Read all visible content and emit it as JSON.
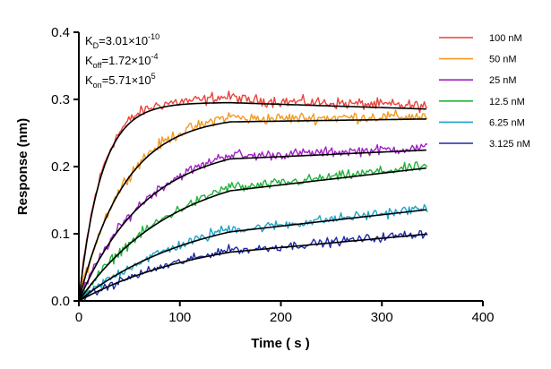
{
  "chart_data": {
    "type": "line",
    "xlabel": "Time ( s )",
    "ylabel": "Response (nm)",
    "xlim": [
      0,
      400
    ],
    "ylim": [
      0,
      0.4
    ],
    "xticks": [
      0,
      100,
      200,
      300,
      400
    ],
    "yticks": [
      0.0,
      0.1,
      0.2,
      0.3,
      0.4
    ],
    "xtick_labels": [
      "0",
      "100",
      "200",
      "300",
      "400"
    ],
    "ytick_labels": [
      "0.0",
      "0.1",
      "0.2",
      "0.3",
      "0.4"
    ],
    "grid": false,
    "legend_position": "right",
    "association_end": 150,
    "time_end": 345,
    "annotations": [
      {
        "base": "K",
        "sub": "D",
        "eq": "=3.01×10",
        "sup": "-10"
      },
      {
        "base": "K",
        "sub": "off",
        "eq": "=1.72×10",
        "sup": "-4"
      },
      {
        "base": "K",
        "sub": "on",
        "eq": "=5.71×10",
        "sup": "5"
      }
    ],
    "fit_color": "#000000",
    "series": [
      {
        "name": "100 nM",
        "color": "#e8443a",
        "plateau": 0.3,
        "k_obs": 0.045,
        "dissoc_end": 0.29,
        "noise": 0.0045
      },
      {
        "name": "50 nM",
        "color": "#f39a1e",
        "plateau": 0.281,
        "k_obs": 0.022,
        "dissoc_end": 0.275,
        "noise": 0.0045
      },
      {
        "name": "25 nM",
        "color": "#a121c4",
        "plateau": 0.24,
        "k_obs": 0.015,
        "dissoc_end": 0.228,
        "noise": 0.004
      },
      {
        "name": "12.5 nM",
        "color": "#22b33b",
        "plateau": 0.21,
        "k_obs": 0.0105,
        "dissoc_end": 0.201,
        "noise": 0.004
      },
      {
        "name": "6.25 nM",
        "color": "#1fa3c7",
        "plateau": 0.145,
        "k_obs": 0.0085,
        "dissoc_end": 0.138,
        "noise": 0.004
      },
      {
        "name": "3.125 nM",
        "color": "#1c2aa8",
        "plateau": 0.107,
        "k_obs": 0.0078,
        "dissoc_end": 0.101,
        "noise": 0.0035
      }
    ]
  }
}
